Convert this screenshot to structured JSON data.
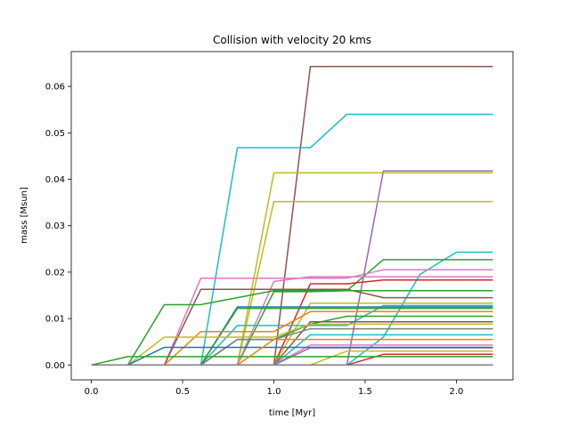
{
  "chart_data": {
    "type": "line",
    "title": "Collision with velocity 20 kms",
    "xlabel": "time [Myr]",
    "ylabel": "mass [Msun]",
    "xlim": [
      -0.11,
      2.31
    ],
    "ylim": [
      -0.0032,
      0.0675
    ],
    "xticks": [
      0.0,
      0.5,
      1.0,
      1.5,
      2.0
    ],
    "xtick_labels": [
      "0.0",
      "0.5",
      "1.0",
      "1.5",
      "2.0"
    ],
    "yticks": [
      0.0,
      0.01,
      0.02,
      0.03,
      0.04,
      0.05,
      0.06
    ],
    "ytick_labels": [
      "0.00",
      "0.01",
      "0.02",
      "0.03",
      "0.04",
      "0.05",
      "0.06"
    ],
    "grid": false,
    "x": [
      0.0,
      0.2,
      0.4,
      0.6,
      0.8,
      1.0,
      1.2,
      1.4,
      1.6,
      1.8,
      2.0,
      2.2
    ],
    "series": [
      {
        "color": "#8c564b",
        "values": [
          0,
          0,
          0,
          0,
          0,
          0,
          0.0643,
          0.0643,
          0.0643,
          0.0643,
          0.0643,
          0.0643
        ]
      },
      {
        "color": "#17becf",
        "values": [
          0,
          0,
          0,
          0,
          0.0468,
          0.0468,
          0.0468,
          0.054,
          0.054,
          0.054,
          0.054,
          0.054
        ]
      },
      {
        "color": "#9467bd",
        "values": [
          0,
          0,
          0,
          0,
          0,
          0,
          0,
          0,
          0.0418,
          0.0418,
          0.0418,
          0.0418
        ]
      },
      {
        "color": "#bcbd22",
        "values": [
          0,
          0,
          0,
          0,
          0,
          0.0414,
          0.0414,
          0.0414,
          0.0414,
          0.0414,
          0.0414,
          0.0414
        ]
      },
      {
        "color": "#bcbd22",
        "values": [
          0,
          0,
          0,
          0,
          0,
          0.0352,
          0.0352,
          0.0352,
          0.0352,
          0.0352,
          0.0352,
          0.0352
        ]
      },
      {
        "color": "#17becf",
        "values": [
          0,
          0,
          0,
          0,
          0,
          0,
          0,
          0,
          0.006,
          0.0195,
          0.0243,
          0.0243
        ]
      },
      {
        "color": "#2ca02c",
        "values": [
          0,
          0,
          0,
          0,
          0,
          0.0158,
          0.0158,
          0.016,
          0.0227,
          0.0227,
          0.0227,
          0.0227
        ]
      },
      {
        "color": "#e377c2",
        "values": [
          0,
          0,
          0,
          0.0187,
          0.0187,
          0.0187,
          0.0187,
          0.0187,
          0.0205,
          0.0205,
          0.0205,
          0.0205
        ]
      },
      {
        "color": "#d62728",
        "values": [
          0,
          0,
          0,
          0,
          0,
          0,
          0.0175,
          0.0175,
          0.0183,
          0.0183,
          0.0183,
          0.0183
        ]
      },
      {
        "color": "#e377c2",
        "values": [
          0,
          0,
          0,
          0,
          0,
          0.018,
          0.019,
          0.019,
          0.019,
          0.019,
          0.019,
          0.019
        ]
      },
      {
        "color": "#8c564b",
        "values": [
          0,
          0,
          0,
          0.0163,
          0.0163,
          0.0163,
          0.0163,
          0.0163,
          0.0145,
          0.0145,
          0.0145,
          0.0145
        ]
      },
      {
        "color": "#2ca02c",
        "values": [
          0,
          0,
          0.013,
          0.013,
          0.0145,
          0.016,
          0.016,
          0.016,
          0.016,
          0.016,
          0.016,
          0.016
        ]
      },
      {
        "color": "#bcbd22",
        "values": [
          0,
          0,
          0,
          0,
          0,
          0,
          0.0133,
          0.0133,
          0.0133,
          0.0133,
          0.0133,
          0.0133
        ]
      },
      {
        "color": "#17becf",
        "values": [
          0,
          0,
          0,
          0,
          0.0085,
          0.0085,
          0.0085,
          0.0085,
          0.0128,
          0.0128,
          0.0128,
          0.0128
        ]
      },
      {
        "color": "#1f77b4",
        "values": [
          0,
          0,
          0,
          0,
          0.0125,
          0.0125,
          0.0125,
          0.0125,
          0.0125,
          0.0125,
          0.0125,
          0.0125
        ]
      },
      {
        "color": "#2ca02c",
        "values": [
          0,
          0,
          0,
          0,
          0.0122,
          0.0122,
          0.0122,
          0.0122,
          0.0122,
          0.0122,
          0.0122,
          0.0122
        ]
      },
      {
        "color": "#ff7f0e",
        "values": [
          0,
          0,
          0,
          0.0072,
          0.0072,
          0.0072,
          0.0115,
          0.0115,
          0.0115,
          0.0115,
          0.0115,
          0.0115
        ]
      },
      {
        "color": "#2ca02c",
        "values": [
          0,
          0,
          0,
          0,
          0.0055,
          0.0055,
          0.0088,
          0.0105,
          0.0105,
          0.0105,
          0.0105,
          0.0105
        ]
      },
      {
        "color": "#8c564b",
        "values": [
          0,
          0,
          0,
          0,
          0,
          0,
          0.0093,
          0.0093,
          0.0093,
          0.0093,
          0.0093,
          0.0093
        ]
      },
      {
        "color": "#bcbd22",
        "values": [
          0,
          0,
          0.006,
          0.006,
          0.006,
          0.006,
          0.0088,
          0.0088,
          0.0088,
          0.0088,
          0.0088,
          0.0088
        ]
      },
      {
        "color": "#7f7f7f",
        "values": [
          0,
          0,
          0,
          0,
          0.0055,
          0.0055,
          0.0078,
          0.0078,
          0.0078,
          0.0078,
          0.0078,
          0.0078
        ]
      },
      {
        "color": "#17becf",
        "values": [
          0,
          0,
          0,
          0,
          0,
          0,
          0.0065,
          0.0065,
          0.0065,
          0.0065,
          0.0065,
          0.0065
        ]
      },
      {
        "color": "#e377c2",
        "values": [
          0,
          0,
          0,
          0,
          0,
          0,
          0.0043,
          0.0043,
          0.0043,
          0.0043,
          0.0043,
          0.0043
        ]
      },
      {
        "color": "#9467bd",
        "values": [
          0,
          0,
          0,
          0,
          0,
          0,
          0.0037,
          0.0037,
          0.0037,
          0.0037,
          0.0037,
          0.0037
        ]
      },
      {
        "color": "#1f77b4",
        "values": [
          0,
          0,
          0.0038,
          0.0038,
          0.0038,
          0.0038,
          0.0038,
          0.0038,
          0.0038,
          0.0038,
          0.0038,
          0.0038
        ]
      },
      {
        "color": "#bcbd22",
        "values": [
          0,
          0,
          0,
          0,
          0,
          0,
          0,
          0.003,
          0.003,
          0.003,
          0.003,
          0.003
        ]
      },
      {
        "color": "#d62728",
        "values": [
          0,
          0,
          0,
          0,
          0,
          0,
          0,
          0,
          0.0023,
          0.0023,
          0.0023,
          0.0023
        ]
      },
      {
        "color": "#2ca02c",
        "values": [
          0,
          0.0018,
          0.0018,
          0.0018,
          0.0018,
          0.0018,
          0.0018,
          0.0018,
          0.0018,
          0.0018,
          0.0018,
          0.0018
        ]
      },
      {
        "color": "#ff7f0e",
        "values": [
          0,
          0,
          0,
          0,
          0,
          0.0055,
          0.0055,
          0.0055,
          0.0055,
          0.0055,
          0.0055,
          0.0055
        ]
      },
      {
        "color": "#1f77b4",
        "values": [
          0,
          0,
          0,
          0,
          0,
          0,
          0,
          0,
          0,
          0,
          0,
          0
        ]
      },
      {
        "color": "#17becf",
        "values": [
          0,
          0,
          0,
          0,
          0,
          0,
          0,
          0,
          0,
          0,
          0,
          0
        ]
      },
      {
        "color": "#7f7f7f",
        "values": [
          0,
          0,
          0,
          0,
          0,
          0,
          0,
          0,
          0,
          0,
          0,
          0
        ]
      }
    ]
  }
}
